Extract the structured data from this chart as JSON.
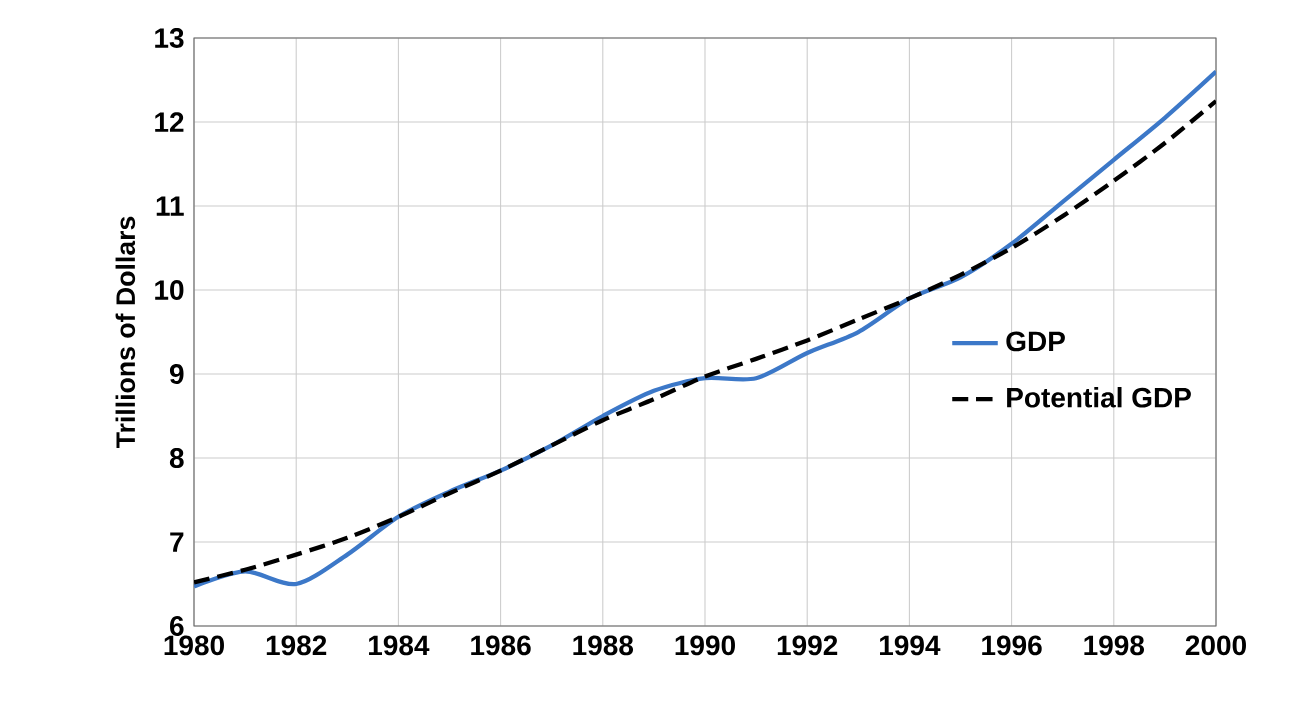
{
  "chart_data": {
    "type": "line",
    "ylabel": "Trillions of Dollars",
    "x": [
      1980,
      1981,
      1982,
      1983,
      1984,
      1985,
      1986,
      1987,
      1988,
      1989,
      1990,
      1991,
      1992,
      1993,
      1994,
      1995,
      1996,
      1997,
      1998,
      1999,
      2000
    ],
    "series": [
      {
        "name": "GDP",
        "color": "#3c78c8",
        "line_style": "solid",
        "values": [
          6.47,
          6.65,
          6.5,
          6.85,
          7.3,
          7.6,
          7.85,
          8.15,
          8.5,
          8.8,
          8.95,
          8.95,
          9.25,
          9.5,
          9.9,
          10.15,
          10.55,
          11.05,
          11.55,
          12.05,
          12.6
        ]
      },
      {
        "name": "Potential GDP",
        "color": "#000000",
        "line_style": "dashed",
        "values": [
          6.52,
          6.67,
          6.85,
          7.05,
          7.3,
          7.58,
          7.85,
          8.15,
          8.45,
          8.7,
          8.97,
          9.18,
          9.4,
          9.65,
          9.9,
          10.18,
          10.5,
          10.88,
          11.3,
          11.75,
          12.25
        ]
      }
    ],
    "xlim": [
      1980,
      2000
    ],
    "xticks": [
      1980,
      1982,
      1984,
      1986,
      1988,
      1990,
      1992,
      1994,
      1996,
      1998,
      2000
    ],
    "ylim": [
      6,
      13
    ],
    "yticks": [
      6,
      7,
      8,
      9,
      10,
      11,
      12,
      13
    ],
    "grid": true,
    "legend": "right",
    "marker": "none"
  }
}
